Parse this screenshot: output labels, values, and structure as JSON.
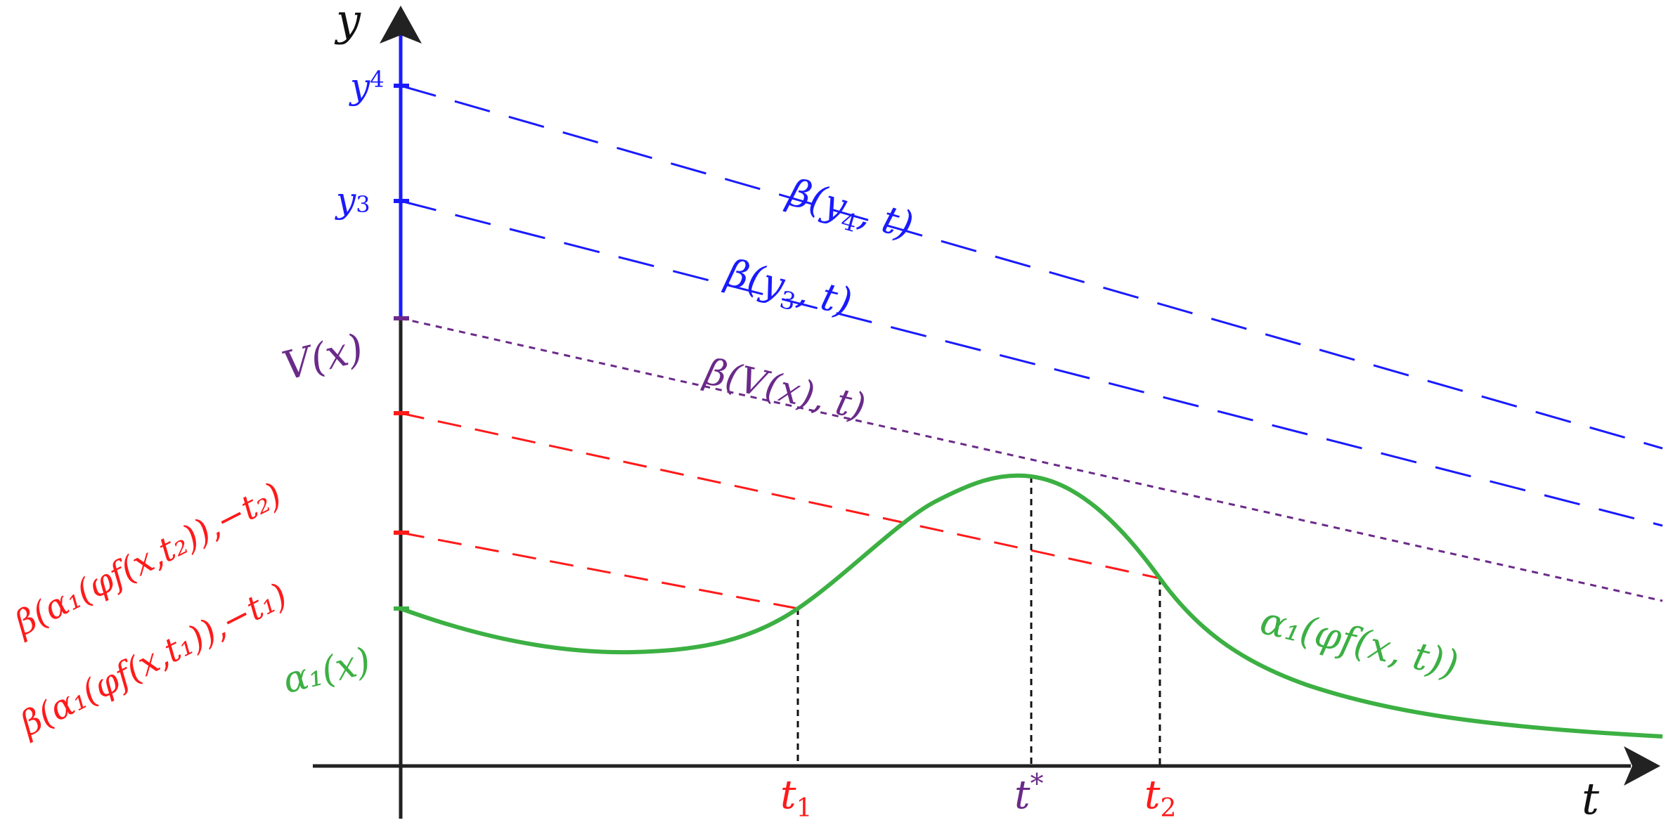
{
  "axes": {
    "x_label": "t",
    "y_label": "y"
  },
  "y_ticks": [
    {
      "id": "y4",
      "label": "y",
      "sub": "4",
      "color": "#1a1aff"
    },
    {
      "id": "y3",
      "label": "y",
      "sub": "3",
      "color": "#1a1aff"
    },
    {
      "id": "V",
      "label": "V(x)",
      "color": "#6b2a8a"
    },
    {
      "id": "beta_t2",
      "label": "β(α₁(φf(x,t₂)),−t₂)",
      "color": "#ff1a1a"
    },
    {
      "id": "beta_t1",
      "label": "β(α₁(φf(x,t₁)),−t₁)",
      "color": "#ff1a1a"
    },
    {
      "id": "alpha1",
      "label": "α₁(x)",
      "color": "#3cb043"
    }
  ],
  "x_ticks": [
    {
      "id": "t1",
      "label": "t",
      "sub": "1",
      "color": "#ff1a1a"
    },
    {
      "id": "tstar",
      "label": "t",
      "sup": "*",
      "color": "#6b2a8a"
    },
    {
      "id": "t2",
      "label": "t",
      "sub": "2",
      "color": "#ff1a1a"
    }
  ],
  "curves": {
    "beta_y4": {
      "label_pre": "β(y",
      "label_sub": "4",
      "label_post": ", t)",
      "color": "#1a1aff",
      "style": "long-dashed"
    },
    "beta_y3": {
      "label_pre": "β(y",
      "label_sub": "3",
      "label_post": ", t)",
      "color": "#1a1aff",
      "style": "long-dashed"
    },
    "beta_V": {
      "label": "β(V(x), t)",
      "color": "#6b2a8a",
      "style": "dotted"
    },
    "beta_red_t2": {
      "color": "#ff1a1a",
      "style": "dashed"
    },
    "beta_red_t1": {
      "color": "#ff1a1a",
      "style": "dashed"
    },
    "alpha_trajectory": {
      "label": "α₁(φf(x, t))",
      "color": "#3cb043",
      "style": "solid"
    }
  },
  "colors": {
    "axis": "#222222",
    "guide": "#111111"
  }
}
